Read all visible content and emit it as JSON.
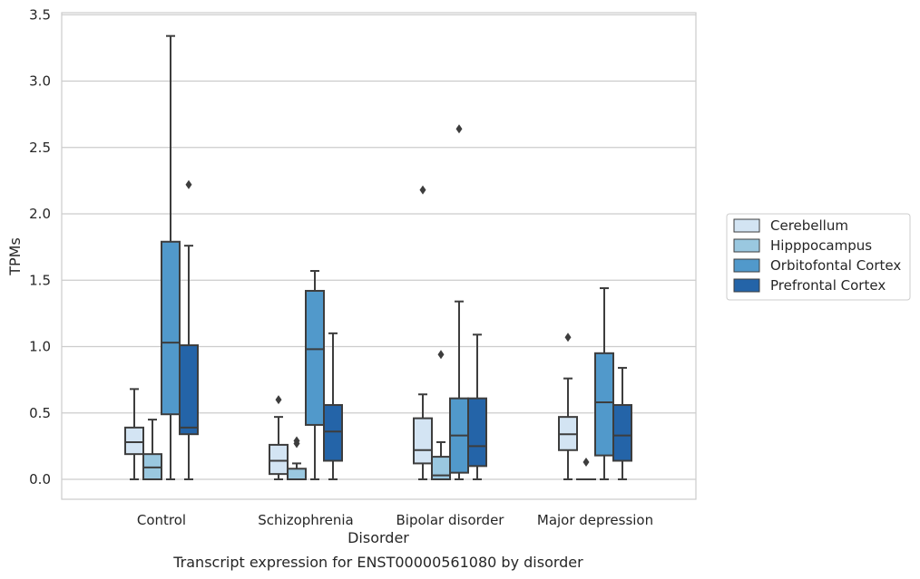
{
  "chart_data": {
    "type": "box",
    "title": "",
    "caption": "Transcript expression for ENST00000561080 by disorder",
    "xlabel": "Disorder",
    "ylabel": "TPMs",
    "ylim": [
      -0.15,
      3.52
    ],
    "yticks": [
      "0.0",
      "0.5",
      "1.0",
      "1.5",
      "2.0",
      "2.5",
      "3.0",
      "3.5"
    ],
    "grid": "horizontal",
    "legend_position": "right",
    "categories": [
      "Control",
      "Schizophrenia",
      "Bipolar disorder",
      "Major depression"
    ],
    "series": [
      {
        "name": "Cerebellum",
        "color": "#d3e4f3",
        "boxes": [
          {
            "whislo": 0.0,
            "q1": 0.19,
            "med": 0.28,
            "q3": 0.39,
            "whishi": 0.68,
            "fliers": []
          },
          {
            "whislo": 0.0,
            "q1": 0.04,
            "med": 0.14,
            "q3": 0.26,
            "whishi": 0.47,
            "fliers": [
              0.6
            ]
          },
          {
            "whislo": 0.0,
            "q1": 0.12,
            "med": 0.22,
            "q3": 0.46,
            "whishi": 0.64,
            "fliers": [
              2.18
            ]
          },
          {
            "whislo": 0.0,
            "q1": 0.22,
            "med": 0.34,
            "q3": 0.47,
            "whishi": 0.76,
            "fliers": [
              1.07
            ]
          }
        ]
      },
      {
        "name": "Hipppocampus",
        "color": "#9ac8e0",
        "boxes": [
          {
            "whislo": 0.0,
            "q1": 0.0,
            "med": 0.09,
            "q3": 0.19,
            "whishi": 0.45,
            "fliers": []
          },
          {
            "whislo": 0.0,
            "q1": 0.0,
            "med": 0.0,
            "q3": 0.08,
            "whishi": 0.12,
            "fliers": [
              0.27,
              0.29
            ]
          },
          {
            "whislo": 0.0,
            "q1": 0.0,
            "med": 0.03,
            "q3": 0.17,
            "whishi": 0.28,
            "fliers": [
              0.94
            ]
          },
          {
            "whislo": 0.0,
            "q1": 0.0,
            "med": 0.0,
            "q3": 0.0,
            "whishi": 0.0,
            "fliers": [
              0.13
            ]
          }
        ]
      },
      {
        "name": "Orbitofontal Cortex",
        "color": "#5199cb",
        "boxes": [
          {
            "whislo": 0.0,
            "q1": 0.49,
            "med": 1.03,
            "q3": 1.79,
            "whishi": 3.34,
            "fliers": []
          },
          {
            "whislo": 0.0,
            "q1": 0.41,
            "med": 0.98,
            "q3": 1.42,
            "whishi": 1.57,
            "fliers": []
          },
          {
            "whislo": 0.0,
            "q1": 0.05,
            "med": 0.33,
            "q3": 0.61,
            "whishi": 1.34,
            "fliers": [
              2.64
            ]
          },
          {
            "whislo": 0.0,
            "q1": 0.18,
            "med": 0.58,
            "q3": 0.95,
            "whishi": 1.44,
            "fliers": []
          }
        ]
      },
      {
        "name": "Prefrontal Cortex",
        "color": "#2464a8",
        "boxes": [
          {
            "whislo": 0.0,
            "q1": 0.34,
            "med": 0.39,
            "q3": 1.01,
            "whishi": 1.76,
            "fliers": [
              2.22
            ]
          },
          {
            "whislo": 0.0,
            "q1": 0.14,
            "med": 0.36,
            "q3": 0.56,
            "whishi": 1.1,
            "fliers": []
          },
          {
            "whislo": 0.0,
            "q1": 0.1,
            "med": 0.25,
            "q3": 0.61,
            "whishi": 1.09,
            "fliers": []
          },
          {
            "whislo": 0.0,
            "q1": 0.14,
            "med": 0.33,
            "q3": 0.56,
            "whishi": 0.84,
            "fliers": []
          }
        ]
      }
    ]
  }
}
